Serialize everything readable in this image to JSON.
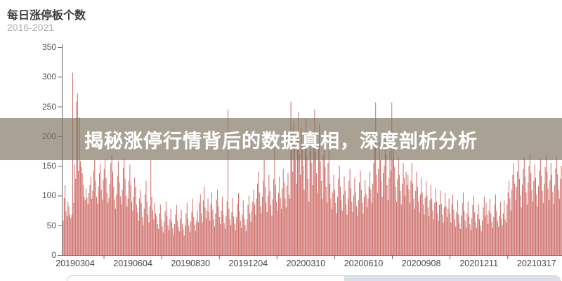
{
  "header": {
    "title": "每日涨停板个数",
    "subtitle": "2016-2021"
  },
  "overlay": {
    "text": "揭秘涨停行情背后的数据真相，深度剖析分析"
  },
  "chart_data": {
    "type": "bar",
    "title": "每日涨停板个数",
    "subtitle": "2016-2021",
    "xlabel": "",
    "ylabel": "",
    "ylim": [
      0,
      350
    ],
    "ytick_interval": 50,
    "yticks": [
      0,
      50,
      100,
      150,
      200,
      250,
      300,
      350
    ],
    "xtick_labels": [
      "20190304",
      "20190604",
      "20190830",
      "20191204",
      "20200310",
      "20200610",
      "20200908",
      "20201211",
      "20210317"
    ],
    "grid": false,
    "legend_position": "none",
    "bar_color": "#c75550",
    "axis_color": "#666666",
    "values": [
      58,
      96,
      118,
      74,
      65,
      90,
      82,
      68,
      62,
      68,
      307,
      88,
      152,
      128,
      258,
      272,
      142,
      232,
      158,
      148,
      138,
      118,
      98,
      92,
      112,
      96,
      86,
      104,
      118,
      132,
      95,
      108,
      142,
      160,
      125,
      98,
      87,
      115,
      138,
      152,
      110,
      93,
      127,
      145,
      162,
      130,
      105,
      88,
      96,
      120,
      155,
      168,
      140,
      115,
      92,
      78,
      102,
      133,
      158,
      122,
      99,
      85,
      110,
      147,
      163,
      128,
      100,
      82,
      95,
      125,
      152,
      118,
      90,
      75,
      98,
      130,
      115,
      85,
      72,
      58,
      95,
      110,
      88,
      64,
      50,
      78,
      102,
      125,
      90,
      68,
      55,
      82,
      160,
      98,
      75,
      60,
      88,
      70,
      65,
      52,
      44,
      70,
      85,
      60,
      48,
      38,
      56,
      74,
      90,
      66,
      50,
      42,
      60,
      78,
      55,
      45,
      35,
      52,
      68,
      84,
      58,
      47,
      40,
      62,
      76,
      53,
      43,
      33,
      50,
      70,
      88,
      61,
      49,
      39,
      57,
      72,
      95,
      64,
      51,
      41,
      58,
      75,
      55,
      88,
      102,
      70,
      55,
      92,
      115,
      80,
      62,
      75,
      95,
      72,
      58,
      85,
      105,
      76,
      60,
      48,
      70,
      93,
      110,
      82,
      64,
      52,
      75,
      98,
      68,
      54,
      44,
      66,
      90,
      245,
      78,
      60,
      50,
      72,
      96,
      65,
      53,
      42,
      64,
      86,
      104,
      74,
      58,
      46,
      68,
      92,
      62,
      50,
      40,
      60,
      84,
      100,
      70,
      56,
      75,
      90,
      110,
      85,
      68,
      95,
      120,
      140,
      105,
      82,
      70,
      98,
      125,
      160,
      115,
      88,
      72,
      100,
      135,
      108,
      84,
      66,
      94,
      128,
      185,
      118,
      90,
      74,
      104,
      132,
      96,
      78,
      112,
      145,
      122,
      95,
      80,
      116,
      138,
      102,
      95,
      258,
      180,
      140,
      225,
      195,
      160,
      120,
      205,
      240,
      170,
      135,
      215,
      185,
      150,
      110,
      195,
      230,
      165,
      128,
      90,
      175,
      210,
      155,
      118,
      200,
      245,
      172,
      138,
      105,
      182,
      220,
      158,
      125,
      95,
      168,
      205,
      148,
      115,
      88,
      155,
      190,
      120,
      95,
      78,
      105,
      135,
      110,
      88,
      70,
      98,
      128,
      150,
      115,
      92,
      75,
      102,
      132,
      108,
      85,
      68,
      95,
      125,
      145,
      112,
      90,
      72,
      100,
      130,
      105,
      82,
      65,
      92,
      122,
      142,
      110,
      88,
      70,
      98,
      126,
      103,
      80,
      95,
      115,
      140,
      110,
      88,
      120,
      155,
      180,
      257,
      135,
      105,
      145,
      190,
      160,
      125,
      98,
      138,
      150,
      200,
      170,
      118,
      92,
      130,
      175,
      142,
      257,
      160,
      195,
      148,
      115,
      90,
      128,
      165,
      135,
      108,
      85,
      120,
      155,
      130,
      100,
      140,
      118,
      135,
      110,
      88,
      125,
      155,
      120,
      95,
      78,
      108,
      140,
      115,
      90,
      72,
      102,
      130,
      105,
      85,
      68,
      96,
      124,
      100,
      80,
      65,
      92,
      118,
      95,
      75,
      60,
      88,
      112,
      90,
      70,
      58,
      84,
      108,
      86,
      68,
      55,
      80,
      104,
      82,
      64,
      78,
      95,
      70,
      55,
      85,
      102,
      76,
      60,
      48,
      72,
      92,
      68,
      54,
      44,
      66,
      88,
      105,
      74,
      58,
      46,
      70,
      90,
      64,
      52,
      42,
      62,
      84,
      100,
      72,
      56,
      45,
      68,
      86,
      60,
      50,
      40,
      58,
      80,
      98,
      66,
      88,
      68,
      52,
      75,
      95,
      70,
      56,
      46,
      64,
      85,
      102,
      74,
      58,
      48,
      66,
      90,
      62,
      50,
      70,
      92,
      60,
      55,
      85,
      105,
      125,
      95,
      75,
      110,
      135,
      155,
      120,
      92,
      115,
      140,
      160,
      128,
      100,
      80,
      118,
      145,
      165,
      132,
      105,
      85,
      122,
      150,
      170,
      138,
      110,
      90,
      125,
      152,
      130,
      102,
      82,
      116,
      142,
      162,
      134,
      108,
      88,
      120,
      148,
      168,
      140,
      112,
      92,
      126,
      155,
      135,
      106,
      86,
      118,
      146,
      166,
      136,
      110,
      95,
      128,
      150
    ]
  },
  "data_zoom": {
    "type": "slider"
  }
}
